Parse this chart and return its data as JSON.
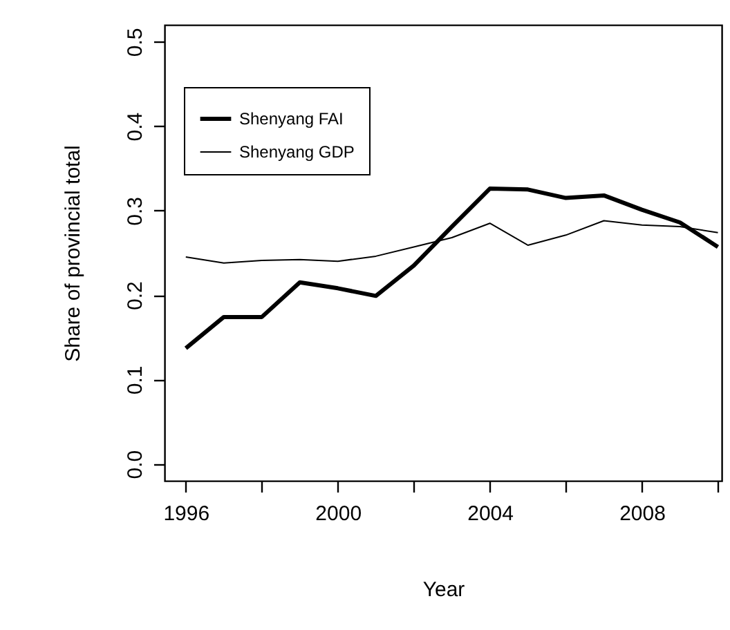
{
  "chart_data": {
    "type": "line",
    "xlabel": "Year",
    "ylabel": "Share of provincial total",
    "x": [
      1996,
      1997,
      1998,
      1999,
      2000,
      2001,
      2002,
      2003,
      2004,
      2005,
      2006,
      2007,
      2008,
      2009,
      2010
    ],
    "series": [
      {
        "name": "Shenyang FAI",
        "color": "#000000",
        "values": [
          0.137,
          0.174,
          0.174,
          0.215,
          0.208,
          0.199,
          0.235,
          0.281,
          0.326,
          0.325,
          0.315,
          0.318,
          0.301,
          0.286,
          0.257
        ]
      },
      {
        "name": "Shenyang GDP",
        "color": "#000000",
        "values": [
          0.245,
          0.238,
          0.241,
          0.242,
          0.24,
          0.246,
          0.257,
          0.268,
          0.285,
          0.259,
          0.271,
          0.288,
          0.283,
          0.281,
          0.274
        ]
      }
    ],
    "xlim": [
      1995.44,
      2010.1
    ],
    "xticks": [
      1996,
      {
        "value": 1998,
        "label": null
      },
      2000,
      {
        "value": 2002,
        "label": null
      },
      2004,
      {
        "value": 2006,
        "label": null
      },
      2008,
      {
        "value": 2010,
        "label": null
      }
    ],
    "ylim": [
      -0.02,
      0.52
    ],
    "yticks": [
      {
        "value": 0,
        "label": "0.0"
      },
      {
        "value": 0.1,
        "label": "0.1"
      },
      {
        "value": 0.2,
        "label": "0.2"
      },
      {
        "value": 0.3,
        "label": "0.3"
      },
      {
        "value": 0.4,
        "label": "0.4"
      },
      {
        "value": 0.5,
        "label": "0.5"
      }
    ],
    "grid": false,
    "legend": "top left",
    "line_style": "solid"
  }
}
